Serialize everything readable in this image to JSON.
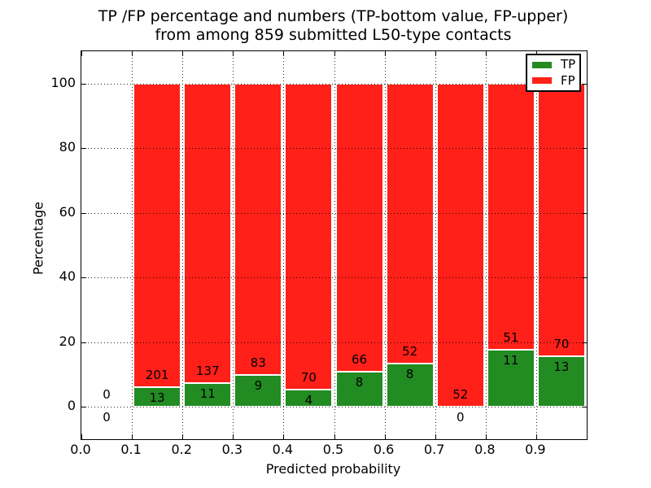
{
  "figure": {
    "title_line1": "TP /FP percentage and numbers (TP-bottom value, FP-upper)",
    "title_line2": "from among 859 submitted L50-type contacts"
  },
  "chart_data": {
    "type": "bar",
    "stacked": true,
    "normalized": "percent (TP+FP = 100% per bin)",
    "title": "TP /FP percentage and numbers (TP-bottom value, FP-upper) from among 859 submitted L50-type contacts",
    "xlabel": "Predicted probability",
    "ylabel": "Percentage",
    "xlim": [
      0.0,
      1.0
    ],
    "ylim": [
      -10,
      110
    ],
    "x_ticks": [
      "0.0",
      "0.1",
      "0.2",
      "0.3",
      "0.4",
      "0.5",
      "0.6",
      "0.7",
      "0.8",
      "0.9"
    ],
    "y_ticks": [
      0,
      20,
      40,
      60,
      80,
      100
    ],
    "grid": "dotted",
    "legend": {
      "position": "upper right",
      "entries": [
        {
          "label": "TP",
          "color": "#228b22"
        },
        {
          "label": "FP",
          "color": "#ff2019"
        }
      ]
    },
    "colors": {
      "tp": "#228b22",
      "fp": "#ff2019",
      "grid": "#000000",
      "background": "#ffffff"
    },
    "series": [
      {
        "name": "TP",
        "values": [
          0,
          13,
          11,
          9,
          4,
          8,
          8,
          0,
          11,
          13
        ]
      },
      {
        "name": "FP",
        "values": [
          0,
          201,
          137,
          83,
          70,
          66,
          52,
          52,
          51,
          70
        ]
      }
    ],
    "bins": [
      {
        "range": [
          0.0,
          0.1
        ],
        "tp": 0,
        "fp": 0
      },
      {
        "range": [
          0.1,
          0.2
        ],
        "tp": 13,
        "fp": 201
      },
      {
        "range": [
          0.2,
          0.3
        ],
        "tp": 11,
        "fp": 137
      },
      {
        "range": [
          0.3,
          0.4
        ],
        "tp": 9,
        "fp": 83
      },
      {
        "range": [
          0.4,
          0.5
        ],
        "tp": 4,
        "fp": 70
      },
      {
        "range": [
          0.5,
          0.6
        ],
        "tp": 8,
        "fp": 66
      },
      {
        "range": [
          0.6,
          0.7
        ],
        "tp": 8,
        "fp": 52
      },
      {
        "range": [
          0.7,
          0.8
        ],
        "tp": 0,
        "fp": 52
      },
      {
        "range": [
          0.8,
          0.9
        ],
        "tp": 11,
        "fp": 51
      },
      {
        "range": [
          0.9,
          1.0
        ],
        "tp": 13,
        "fp": 70
      }
    ]
  }
}
